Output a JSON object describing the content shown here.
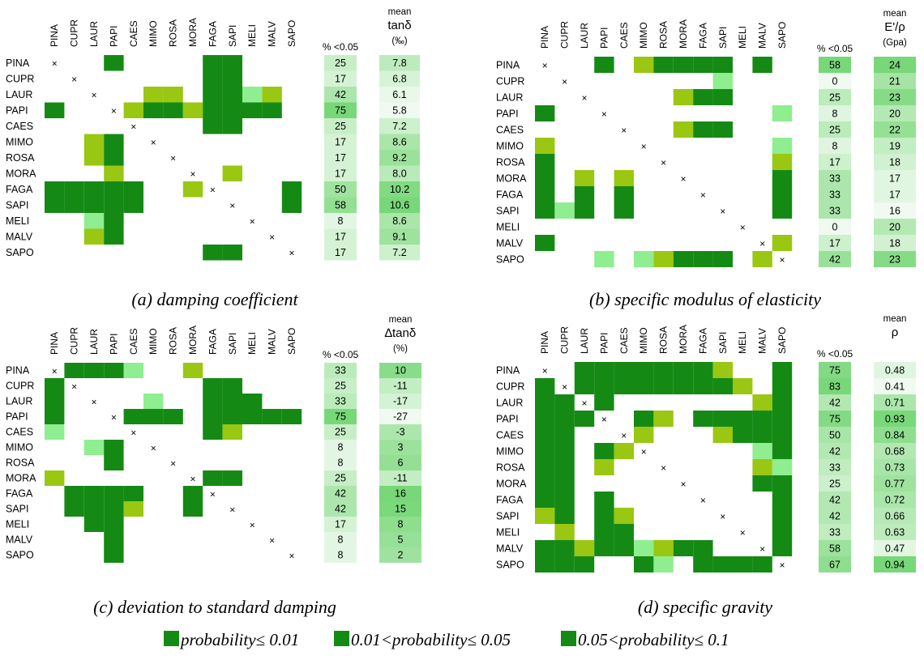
{
  "species": [
    "PINA",
    "CUPR",
    "LAUR",
    "PAPI",
    "CAES",
    "MIMO",
    "ROSA",
    "MORA",
    "FAGA",
    "SAPI",
    "MELI",
    "MALV",
    "SAPO"
  ],
  "colors": {
    "p001": "#148a14",
    "p005": "#99c712",
    "p01": "#8fee8f",
    "cross": "×"
  },
  "legend": [
    {
      "color": "#148a14",
      "label": "probability≤ 0.01"
    },
    {
      "color": "#148a14",
      "label": "0.01<probability≤ 0.05"
    },
    {
      "color": "#148a14",
      "label": "0.05<probability≤ 0.1"
    }
  ],
  "pct_header": "% <0.05",
  "chart_data": [
    {
      "type": "heatmap",
      "caption": "(a) damping coefficient",
      "mean_header": [
        "mean",
        "tanδ",
        "(‰)"
      ],
      "pct": [
        25,
        17,
        42,
        75,
        25,
        17,
        17,
        17,
        50,
        58,
        8,
        17,
        17
      ],
      "mean": [
        "7.8",
        "6.8",
        "6.1",
        "5.8",
        "7.2",
        "8.6",
        "9.2",
        "8.0",
        "10.2",
        "10.6",
        "8.6",
        "9.1",
        "7.2"
      ],
      "cells": [
        [
          0,
          3,
          1
        ],
        [
          0,
          8,
          1
        ],
        [
          0,
          9,
          1
        ],
        [
          1,
          8,
          1
        ],
        [
          1,
          9,
          1
        ],
        [
          2,
          5,
          2
        ],
        [
          2,
          6,
          2
        ],
        [
          2,
          8,
          1
        ],
        [
          2,
          9,
          1
        ],
        [
          2,
          10,
          3
        ],
        [
          2,
          11,
          2
        ],
        [
          3,
          0,
          1
        ],
        [
          3,
          4,
          2
        ],
        [
          3,
          5,
          1
        ],
        [
          3,
          6,
          1
        ],
        [
          3,
          7,
          2
        ],
        [
          3,
          8,
          1
        ],
        [
          3,
          9,
          1
        ],
        [
          3,
          10,
          1
        ],
        [
          3,
          11,
          1
        ],
        [
          4,
          8,
          1
        ],
        [
          4,
          9,
          1
        ],
        [
          5,
          2,
          2
        ],
        [
          5,
          3,
          1
        ],
        [
          6,
          2,
          2
        ],
        [
          6,
          3,
          1
        ],
        [
          7,
          3,
          2
        ],
        [
          7,
          9,
          2
        ],
        [
          8,
          0,
          1
        ],
        [
          8,
          1,
          1
        ],
        [
          8,
          2,
          1
        ],
        [
          8,
          3,
          1
        ],
        [
          8,
          4,
          1
        ],
        [
          8,
          7,
          2
        ],
        [
          8,
          12,
          1
        ],
        [
          9,
          0,
          1
        ],
        [
          9,
          1,
          1
        ],
        [
          9,
          2,
          1
        ],
        [
          9,
          3,
          1
        ],
        [
          9,
          4,
          1
        ],
        [
          9,
          12,
          1
        ],
        [
          10,
          2,
          3
        ],
        [
          10,
          3,
          1
        ],
        [
          11,
          2,
          2
        ],
        [
          11,
          3,
          1
        ],
        [
          12,
          8,
          1
        ],
        [
          12,
          9,
          1
        ]
      ]
    },
    {
      "type": "heatmap",
      "caption": "(b) specific modulus of elasticity",
      "mean_header": [
        "mean",
        "E'/ρ",
        "(Gpa)"
      ],
      "pct": [
        58,
        0,
        25,
        8,
        25,
        8,
        17,
        33,
        33,
        33,
        0,
        17,
        42
      ],
      "mean": [
        "24",
        "21",
        "23",
        "20",
        "22",
        "19",
        "18",
        "17",
        "17",
        "16",
        "20",
        "18",
        "23"
      ],
      "cells": [
        [
          0,
          3,
          1
        ],
        [
          0,
          5,
          2
        ],
        [
          0,
          6,
          1
        ],
        [
          0,
          7,
          1
        ],
        [
          0,
          8,
          1
        ],
        [
          0,
          9,
          1
        ],
        [
          0,
          11,
          1
        ],
        [
          1,
          9,
          3
        ],
        [
          2,
          7,
          2
        ],
        [
          2,
          8,
          1
        ],
        [
          2,
          9,
          1
        ],
        [
          3,
          0,
          1
        ],
        [
          3,
          12,
          3
        ],
        [
          4,
          7,
          2
        ],
        [
          4,
          8,
          1
        ],
        [
          4,
          9,
          1
        ],
        [
          5,
          0,
          2
        ],
        [
          5,
          12,
          3
        ],
        [
          6,
          0,
          1
        ],
        [
          6,
          12,
          2
        ],
        [
          7,
          0,
          1
        ],
        [
          7,
          2,
          2
        ],
        [
          7,
          4,
          2
        ],
        [
          7,
          12,
          1
        ],
        [
          8,
          0,
          1
        ],
        [
          8,
          2,
          1
        ],
        [
          8,
          4,
          1
        ],
        [
          8,
          12,
          1
        ],
        [
          9,
          0,
          1
        ],
        [
          9,
          1,
          3
        ],
        [
          9,
          2,
          1
        ],
        [
          9,
          4,
          1
        ],
        [
          9,
          12,
          1
        ],
        [
          11,
          0,
          1
        ],
        [
          11,
          12,
          2
        ],
        [
          12,
          3,
          3
        ],
        [
          12,
          5,
          3
        ],
        [
          12,
          6,
          2
        ],
        [
          12,
          7,
          1
        ],
        [
          12,
          8,
          1
        ],
        [
          12,
          9,
          1
        ],
        [
          12,
          11,
          2
        ]
      ]
    },
    {
      "type": "heatmap",
      "caption": "(c) deviation to standard damping",
      "mean_header": [
        "mean",
        "∆tanδ",
        "(%)"
      ],
      "pct": [
        33,
        25,
        33,
        75,
        25,
        8,
        8,
        25,
        42,
        42,
        17,
        8,
        8
      ],
      "mean": [
        "10",
        "-11",
        "-17",
        "-27",
        "-3",
        "3",
        "6",
        "-11",
        "16",
        "15",
        "8",
        "5",
        "2"
      ],
      "cells": [
        [
          0,
          1,
          1
        ],
        [
          0,
          2,
          1
        ],
        [
          0,
          3,
          1
        ],
        [
          0,
          4,
          3
        ],
        [
          0,
          7,
          2
        ],
        [
          1,
          0,
          1
        ],
        [
          1,
          8,
          1
        ],
        [
          1,
          9,
          1
        ],
        [
          2,
          0,
          1
        ],
        [
          2,
          5,
          3
        ],
        [
          2,
          8,
          1
        ],
        [
          2,
          9,
          1
        ],
        [
          2,
          10,
          1
        ],
        [
          3,
          0,
          1
        ],
        [
          3,
          4,
          1
        ],
        [
          3,
          5,
          1
        ],
        [
          3,
          6,
          1
        ],
        [
          3,
          8,
          1
        ],
        [
          3,
          9,
          1
        ],
        [
          3,
          10,
          1
        ],
        [
          3,
          11,
          1
        ],
        [
          3,
          12,
          1
        ],
        [
          4,
          0,
          3
        ],
        [
          4,
          8,
          1
        ],
        [
          4,
          9,
          2
        ],
        [
          5,
          2,
          3
        ],
        [
          5,
          3,
          1
        ],
        [
          6,
          3,
          1
        ],
        [
          7,
          0,
          2
        ],
        [
          7,
          8,
          1
        ],
        [
          7,
          9,
          1
        ],
        [
          8,
          1,
          1
        ],
        [
          8,
          2,
          1
        ],
        [
          8,
          3,
          1
        ],
        [
          8,
          4,
          1
        ],
        [
          8,
          7,
          1
        ],
        [
          9,
          1,
          1
        ],
        [
          9,
          2,
          1
        ],
        [
          9,
          3,
          1
        ],
        [
          9,
          4,
          2
        ],
        [
          9,
          7,
          1
        ],
        [
          10,
          2,
          1
        ],
        [
          10,
          3,
          1
        ],
        [
          11,
          3,
          1
        ],
        [
          12,
          3,
          1
        ]
      ]
    },
    {
      "type": "heatmap",
      "caption": "(d) specific gravity",
      "mean_header": [
        "mean",
        "ρ",
        ""
      ],
      "pct": [
        75,
        83,
        42,
        75,
        50,
        42,
        33,
        25,
        42,
        42,
        33,
        58,
        67
      ],
      "mean": [
        "0.48",
        "0.41",
        "0.71",
        "0.93",
        "0.84",
        "0.68",
        "0.73",
        "0.77",
        "0.72",
        "0.66",
        "0.63",
        "0.47",
        "0.94"
      ],
      "cells": [
        [
          0,
          2,
          1
        ],
        [
          0,
          3,
          1
        ],
        [
          0,
          4,
          1
        ],
        [
          0,
          5,
          1
        ],
        [
          0,
          6,
          1
        ],
        [
          0,
          7,
          1
        ],
        [
          0,
          8,
          1
        ],
        [
          0,
          9,
          2
        ],
        [
          0,
          12,
          1
        ],
        [
          1,
          0,
          1
        ],
        [
          1,
          2,
          1
        ],
        [
          1,
          3,
          1
        ],
        [
          1,
          4,
          1
        ],
        [
          1,
          5,
          1
        ],
        [
          1,
          6,
          1
        ],
        [
          1,
          7,
          1
        ],
        [
          1,
          8,
          1
        ],
        [
          1,
          9,
          1
        ],
        [
          1,
          10,
          2
        ],
        [
          1,
          12,
          1
        ],
        [
          2,
          0,
          1
        ],
        [
          2,
          1,
          1
        ],
        [
          2,
          3,
          1
        ],
        [
          2,
          11,
          2
        ],
        [
          2,
          12,
          1
        ],
        [
          3,
          0,
          1
        ],
        [
          3,
          1,
          1
        ],
        [
          3,
          2,
          1
        ],
        [
          3,
          5,
          1
        ],
        [
          3,
          6,
          2
        ],
        [
          3,
          8,
          1
        ],
        [
          3,
          9,
          1
        ],
        [
          3,
          10,
          1
        ],
        [
          3,
          11,
          1
        ],
        [
          3,
          12,
          1
        ],
        [
          4,
          0,
          1
        ],
        [
          4,
          1,
          1
        ],
        [
          4,
          5,
          2
        ],
        [
          4,
          9,
          2
        ],
        [
          4,
          10,
          1
        ],
        [
          4,
          11,
          1
        ],
        [
          4,
          12,
          1
        ],
        [
          5,
          0,
          1
        ],
        [
          5,
          1,
          1
        ],
        [
          5,
          3,
          1
        ],
        [
          5,
          4,
          2
        ],
        [
          5,
          11,
          3
        ],
        [
          5,
          12,
          1
        ],
        [
          6,
          0,
          1
        ],
        [
          6,
          1,
          1
        ],
        [
          6,
          3,
          2
        ],
        [
          6,
          11,
          2
        ],
        [
          6,
          12,
          3
        ],
        [
          7,
          0,
          1
        ],
        [
          7,
          1,
          1
        ],
        [
          7,
          11,
          1
        ],
        [
          7,
          12,
          1
        ],
        [
          8,
          0,
          1
        ],
        [
          8,
          1,
          1
        ],
        [
          8,
          3,
          1
        ],
        [
          8,
          12,
          1
        ],
        [
          9,
          0,
          2
        ],
        [
          9,
          1,
          1
        ],
        [
          9,
          3,
          1
        ],
        [
          9,
          4,
          2
        ],
        [
          9,
          12,
          1
        ],
        [
          10,
          1,
          2
        ],
        [
          10,
          3,
          1
        ],
        [
          10,
          4,
          1
        ],
        [
          10,
          12,
          1
        ],
        [
          11,
          0,
          1
        ],
        [
          11,
          1,
          1
        ],
        [
          11,
          2,
          2
        ],
        [
          11,
          3,
          1
        ],
        [
          11,
          4,
          1
        ],
        [
          11,
          5,
          3
        ],
        [
          11,
          6,
          2
        ],
        [
          11,
          7,
          1
        ],
        [
          11,
          8,
          1
        ],
        [
          11,
          12,
          1
        ],
        [
          12,
          0,
          1
        ],
        [
          12,
          1,
          1
        ],
        [
          12,
          2,
          1
        ],
        [
          12,
          5,
          1
        ],
        [
          12,
          6,
          3
        ],
        [
          12,
          8,
          1
        ],
        [
          12,
          9,
          1
        ],
        [
          12,
          10,
          1
        ],
        [
          12,
          11,
          1
        ]
      ]
    }
  ]
}
